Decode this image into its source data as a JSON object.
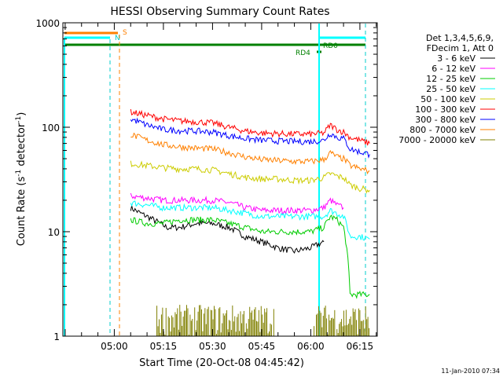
{
  "chart_data": {
    "type": "line",
    "title": "HESSI Observing Summary Count Rates",
    "xlabel": "Start Time (20-Oct-08 04:45:42)",
    "ylabel": "Count Rate (s⁻¹ detector⁻¹)",
    "ylabel_parts": {
      "base": "Count Rate (s",
      "exp1": "-1",
      "mid": " detector",
      "exp2": "-1",
      "end": ")"
    },
    "y_scale": "log",
    "ylim": [
      1,
      1000
    ],
    "xlim_minutes": [
      -15.7,
      80.3
    ],
    "x_origin": "05:00",
    "yticks": [
      {
        "value": 1,
        "label": "1"
      },
      {
        "value": 10,
        "label": "10"
      },
      {
        "value": 100,
        "label": "100"
      },
      {
        "value": 1000,
        "label": "1000"
      }
    ],
    "xticks": [
      {
        "minutes": 0,
        "label": "05:00"
      },
      {
        "minutes": 15,
        "label": "05:15"
      },
      {
        "minutes": 30,
        "label": "05:30"
      },
      {
        "minutes": 45,
        "label": "05:45"
      },
      {
        "minutes": 60,
        "label": "06:00"
      },
      {
        "minutes": 75,
        "label": "06:15"
      }
    ],
    "legend": {
      "placement": "top-right",
      "header": [
        "Det 1,3,4,5,6,9,",
        "FDecim 1, Att 0"
      ],
      "entries": [
        {
          "label": "3 - 6 keV",
          "color": "#000000"
        },
        {
          "label": "6 - 12 keV",
          "color": "#ff00ff"
        },
        {
          "label": "12 - 25 keV",
          "color": "#00cc00"
        },
        {
          "label": "25 - 50 keV",
          "color": "#00ffff"
        },
        {
          "label": "50 - 100 keV",
          "color": "#cccc00"
        },
        {
          "label": "100 - 300 keV",
          "color": "#ff0000"
        },
        {
          "label": "300 - 800 keV",
          "color": "#0000ff"
        },
        {
          "label": "800 - 7000 keV",
          "color": "#ff8000"
        },
        {
          "label": "7000 - 20000 keV",
          "color": "#808000"
        }
      ]
    },
    "flags": [
      {
        "label": "S",
        "color": "#ff8000"
      },
      {
        "label": "N",
        "color": "#00ffff"
      },
      {
        "label": "RD0",
        "color": "#008000"
      },
      {
        "label": "RD4",
        "color": "#008000"
      }
    ],
    "series": [
      {
        "name": "3 - 6 keV",
        "color": "#000000",
        "x": [
          5,
          8,
          12,
          16,
          20,
          25,
          30,
          35,
          40,
          45,
          50,
          55,
          60,
          64
        ],
        "y": [
          17,
          15,
          13,
          11,
          11,
          12,
          12,
          11,
          9,
          8,
          7,
          6.5,
          7,
          8
        ]
      },
      {
        "name": "6 - 12 keV",
        "color": "#ff00ff",
        "x": [
          5,
          10,
          15,
          20,
          25,
          30,
          35,
          40,
          45,
          50,
          55,
          60,
          64,
          66,
          68,
          70
        ],
        "y": [
          22,
          21,
          20,
          20,
          20,
          20,
          19,
          17,
          16,
          16,
          16,
          16,
          17,
          20,
          18,
          17
        ]
      },
      {
        "name": "12 - 25 keV",
        "color": "#00cc00",
        "x": [
          5,
          10,
          15,
          20,
          25,
          30,
          35,
          40,
          45,
          50,
          55,
          60,
          64,
          66,
          68,
          70,
          72,
          75,
          78
        ],
        "y": [
          13,
          12,
          12,
          13,
          13,
          13,
          12,
          11,
          10,
          10,
          10,
          10,
          11,
          14,
          13,
          11,
          2.5,
          2.5,
          2.5
        ]
      },
      {
        "name": "25 - 50 keV",
        "color": "#00ffff",
        "x": [
          5,
          10,
          15,
          20,
          25,
          30,
          35,
          40,
          45,
          50,
          55,
          60,
          64,
          66,
          68,
          70,
          72,
          75,
          78
        ],
        "y": [
          19,
          18,
          17,
          17,
          17,
          17,
          16,
          15,
          14,
          14,
          14,
          14,
          14,
          16,
          15,
          14,
          9,
          9,
          8.5
        ]
      },
      {
        "name": "50 - 100 keV",
        "color": "#cccc00",
        "x": [
          5,
          10,
          15,
          20,
          25,
          30,
          35,
          40,
          45,
          50,
          55,
          60,
          64,
          66,
          68,
          70,
          72,
          75,
          78
        ],
        "y": [
          45,
          43,
          41,
          40,
          40,
          39,
          36,
          33,
          32,
          32,
          31,
          31,
          33,
          36,
          34,
          33,
          28,
          26,
          25
        ]
      },
      {
        "name": "100 - 300 keV",
        "color": "#ff0000",
        "x": [
          5,
          10,
          15,
          20,
          25,
          30,
          35,
          40,
          45,
          50,
          55,
          60,
          64,
          66,
          68,
          70,
          72,
          75,
          78
        ],
        "y": [
          140,
          130,
          120,
          115,
          113,
          110,
          100,
          92,
          88,
          87,
          86,
          86,
          88,
          105,
          95,
          90,
          80,
          75,
          70
        ]
      },
      {
        "name": "300 - 800 keV",
        "color": "#0000ff",
        "x": [
          5,
          10,
          15,
          20,
          25,
          30,
          35,
          40,
          45,
          50,
          55,
          60,
          64,
          66,
          68,
          70,
          72,
          75,
          78
        ],
        "y": [
          120,
          105,
          95,
          93,
          92,
          90,
          83,
          78,
          75,
          74,
          73,
          73,
          75,
          88,
          80,
          78,
          62,
          58,
          55
        ]
      },
      {
        "name": "800 - 7000 keV",
        "color": "#ff8000",
        "x": [
          5,
          10,
          15,
          20,
          25,
          30,
          35,
          40,
          45,
          50,
          55,
          60,
          64,
          66,
          68,
          70,
          72,
          75,
          78
        ],
        "y": [
          85,
          75,
          68,
          65,
          63,
          62,
          57,
          52,
          49,
          48,
          47,
          47,
          49,
          57,
          52,
          50,
          43,
          40,
          38
        ]
      }
    ]
  },
  "footer": {
    "date": "11-Jan-2010 07:34"
  }
}
